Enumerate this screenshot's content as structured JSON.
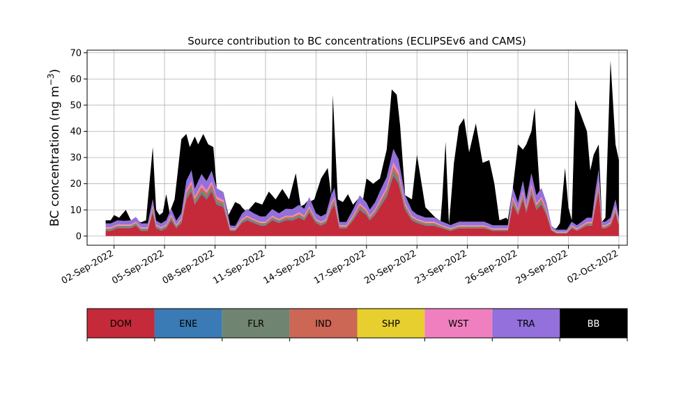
{
  "chart_data": {
    "type": "area",
    "stacked": true,
    "title": "Source contribution to BC concentrations (ECLIPSEv6 and CAMS)",
    "ylabel_main": "BC concentration (ng m",
    "ylabel_sup": "−3",
    "ylabel_close": ")",
    "xlabel": "",
    "ylim": [
      -3.5,
      71
    ],
    "yticks": [
      0,
      10,
      20,
      30,
      40,
      50,
      60,
      70
    ],
    "xlim": [
      0.4,
      32.5
    ],
    "grid": true,
    "xtick_positions": [
      2,
      5,
      8,
      11,
      14,
      17,
      20,
      23,
      26,
      29,
      32
    ],
    "xtick_labels": [
      "02-Sep-2022",
      "05-Sep-2022",
      "08-Sep-2022",
      "11-Sep-2022",
      "14-Sep-2022",
      "17-Sep-2022",
      "20-Sep-2022",
      "23-Sep-2022",
      "26-Sep-2022",
      "29-Sep-2022",
      "02-Oct-2022"
    ],
    "x_unit": "day of September 2022",
    "total_x": [
      1.5,
      1.8,
      2.0,
      2.3,
      2.7,
      3.0,
      3.5,
      3.9,
      4.3,
      4.5,
      4.7,
      4.9,
      5.1,
      5.3,
      5.6,
      6.0,
      6.3,
      6.5,
      6.8,
      7.0,
      7.3,
      7.6,
      7.9,
      8.1,
      8.4,
      8.8,
      9.2,
      9.5,
      9.8,
      10.0,
      10.4,
      10.8,
      11.2,
      11.6,
      12.0,
      12.4,
      12.8,
      13.1,
      13.5,
      13.7,
      13.9,
      14.3,
      14.7,
      14.9,
      15.0,
      15.3,
      15.6,
      15.9,
      16.2,
      16.5,
      16.8,
      17.0,
      17.4,
      17.8,
      18.2,
      18.5,
      18.8,
      19.0,
      19.3,
      19.7,
      20.0,
      20.5,
      21.1,
      21.4,
      21.7,
      21.9,
      22.2,
      22.5,
      22.8,
      23.1,
      23.5,
      23.9,
      24.3,
      24.6,
      24.9,
      25.3,
      25.7,
      26.0,
      26.3,
      26.5,
      26.8,
      27.0,
      27.3,
      27.6,
      27.9,
      28.2,
      28.5,
      28.8,
      29.0,
      29.2,
      29.4,
      29.7,
      30.1,
      30.3,
      30.5,
      30.8,
      31.0,
      31.2,
      31.5,
      31.8,
      32.0
    ],
    "total_values": [
      6,
      6,
      8,
      7,
      10,
      6,
      5,
      6,
      34,
      10,
      8,
      9,
      16,
      9,
      14,
      37,
      39,
      34,
      38,
      35,
      39,
      35,
      34,
      4,
      3,
      8,
      13,
      12,
      9,
      10,
      13,
      12,
      17,
      14,
      18,
      14,
      24,
      11,
      13,
      11,
      14,
      22,
      26,
      15,
      54,
      14,
      13,
      16,
      12,
      13,
      13,
      22,
      20,
      22,
      33,
      56,
      54,
      42,
      10,
      14,
      31,
      11,
      7,
      3,
      36,
      4,
      28,
      42,
      45,
      32,
      43,
      28,
      29,
      20,
      6,
      7,
      4,
      35,
      33,
      35,
      40,
      49,
      14,
      7,
      3,
      2,
      5,
      26,
      11,
      6,
      52,
      47,
      40,
      25,
      31,
      35,
      4,
      7,
      67,
      35,
      29
    ],
    "components_total_ratio_note": "",
    "component_x": [
      1.5,
      1.8,
      2.2,
      2.6,
      3.0,
      3.3,
      3.6,
      4.0,
      4.3,
      4.5,
      4.8,
      5.1,
      5.4,
      5.7,
      6.0,
      6.3,
      6.6,
      6.8,
      7.2,
      7.5,
      7.8,
      8.1,
      8.5,
      8.9,
      9.2,
      9.6,
      9.9,
      10.3,
      10.7,
      11.0,
      11.4,
      11.8,
      12.2,
      12.6,
      13.0,
      13.3,
      13.6,
      14.0,
      14.3,
      14.6,
      14.9,
      15.1,
      15.4,
      15.8,
      16.2,
      16.6,
      17.0,
      17.2,
      17.5,
      17.8,
      18.2,
      18.6,
      18.9,
      19.3,
      19.7,
      20.0,
      20.5,
      21.0,
      21.5,
      22.0,
      22.5,
      23.0,
      23.5,
      24.0,
      24.5,
      25.0,
      25.4,
      25.7,
      26.0,
      26.3,
      26.5,
      26.8,
      27.1,
      27.4,
      27.7,
      28.0,
      28.3,
      28.6,
      28.9,
      29.2,
      29.5,
      29.8,
      30.1,
      30.4,
      30.6,
      30.8,
      31.0,
      31.2,
      31.5,
      31.8,
      32.0
    ],
    "series": [
      {
        "name": "DOM",
        "color": "#c52a3a",
        "values": [
          2,
          2,
          3,
          3,
          3,
          4,
          2,
          2,
          9,
          3,
          2,
          3,
          6,
          3,
          5,
          14,
          17,
          12,
          16,
          14,
          17,
          12,
          11,
          2,
          2,
          5,
          6,
          5,
          4,
          4,
          6,
          5,
          6,
          6,
          7,
          6,
          9,
          5,
          4,
          5,
          10,
          12,
          3,
          3,
          6,
          10,
          8,
          6,
          8,
          11,
          15,
          23,
          20,
          10,
          6,
          5,
          4,
          4,
          3,
          2,
          3,
          3,
          3,
          3,
          2,
          2,
          2,
          12,
          8,
          14,
          9,
          16,
          10,
          12,
          8,
          2,
          1,
          1,
          1,
          3,
          2,
          3,
          4,
          4,
          11,
          17,
          3,
          3,
          4,
          9,
          4
        ]
      },
      {
        "name": "ENE",
        "color": "#3a7ab5",
        "values": [
          0.2,
          0.2,
          0.2,
          0.2,
          0.2,
          0.2,
          0.2,
          0.2,
          0.3,
          0.2,
          0.2,
          0.2,
          0.3,
          0.2,
          0.2,
          0.4,
          0.4,
          0.3,
          0.4,
          0.4,
          0.4,
          0.3,
          0.3,
          0.1,
          0.1,
          0.2,
          0.2,
          0.2,
          0.2,
          0.2,
          0.2,
          0.2,
          0.2,
          0.2,
          0.2,
          0.2,
          0.3,
          0.2,
          0.2,
          0.2,
          0.3,
          0.3,
          0.1,
          0.1,
          0.2,
          0.3,
          0.2,
          0.2,
          0.2,
          0.3,
          0.4,
          0.5,
          0.5,
          0.3,
          0.2,
          0.2,
          0.2,
          0.2,
          0.1,
          0.1,
          0.1,
          0.1,
          0.1,
          0.1,
          0.1,
          0.1,
          0.1,
          0.3,
          0.2,
          0.3,
          0.2,
          0.4,
          0.3,
          0.3,
          0.2,
          0.1,
          0.1,
          0.1,
          0.1,
          0.1,
          0.1,
          0.1,
          0.1,
          0.1,
          0.3,
          0.4,
          0.1,
          0.1,
          0.1,
          0.2,
          0.1
        ]
      },
      {
        "name": "FLR",
        "color": "#6f8471",
        "values": [
          0.5,
          0.5,
          0.5,
          0.5,
          0.5,
          0.5,
          0.5,
          0.5,
          0.8,
          0.5,
          0.5,
          0.5,
          0.7,
          0.5,
          0.6,
          1.0,
          1.2,
          0.9,
          1.1,
          1.0,
          1.1,
          0.9,
          0.8,
          0.3,
          0.3,
          0.5,
          0.6,
          0.5,
          0.5,
          0.5,
          0.6,
          0.5,
          0.6,
          0.6,
          0.7,
          0.6,
          0.8,
          0.5,
          0.5,
          0.5,
          0.8,
          0.9,
          0.4,
          0.4,
          0.6,
          0.8,
          0.7,
          0.6,
          0.7,
          0.9,
          1.1,
          1.4,
          1.3,
          0.8,
          0.6,
          0.5,
          0.5,
          0.5,
          0.4,
          0.4,
          0.4,
          0.4,
          0.4,
          0.4,
          0.3,
          0.3,
          0.3,
          0.9,
          0.7,
          1.0,
          0.7,
          1.1,
          0.8,
          0.9,
          0.7,
          0.3,
          0.2,
          0.2,
          0.2,
          0.4,
          0.3,
          0.4,
          0.5,
          0.5,
          0.9,
          1.1,
          0.4,
          0.4,
          0.5,
          0.7,
          0.5
        ]
      },
      {
        "name": "IND",
        "color": "#cc6655",
        "values": [
          0.3,
          0.3,
          0.3,
          0.3,
          0.3,
          0.4,
          0.3,
          0.3,
          0.8,
          0.3,
          0.3,
          0.3,
          0.6,
          0.3,
          0.5,
          1.2,
          1.4,
          1.0,
          1.3,
          1.1,
          1.3,
          1.0,
          0.9,
          0.2,
          0.2,
          0.4,
          0.5,
          0.4,
          0.4,
          0.4,
          0.5,
          0.4,
          0.5,
          0.5,
          0.6,
          0.5,
          0.7,
          0.4,
          0.4,
          0.4,
          0.8,
          0.9,
          0.3,
          0.3,
          0.5,
          0.8,
          0.7,
          0.5,
          0.7,
          0.9,
          1.2,
          1.8,
          1.6,
          0.8,
          0.5,
          0.4,
          0.4,
          0.4,
          0.3,
          0.2,
          0.3,
          0.3,
          0.3,
          0.3,
          0.2,
          0.2,
          0.2,
          1.0,
          0.7,
          1.1,
          0.7,
          1.3,
          0.8,
          1.0,
          0.7,
          0.2,
          0.1,
          0.1,
          0.1,
          0.3,
          0.2,
          0.3,
          0.4,
          0.4,
          0.9,
          1.3,
          0.3,
          0.3,
          0.4,
          0.7,
          0.4
        ]
      },
      {
        "name": "SHP",
        "color": "#e6cf2e",
        "values": [
          0.1,
          0.1,
          0.1,
          0.1,
          0.1,
          0.1,
          0.1,
          0.1,
          0.1,
          0.1,
          0.1,
          0.1,
          0.1,
          0.1,
          0.1,
          0.1,
          0.1,
          0.1,
          0.1,
          0.1,
          0.1,
          0.1,
          0.1,
          0.1,
          0.1,
          0.1,
          0.1,
          0.1,
          0.1,
          0.1,
          0.1,
          0.1,
          0.1,
          0.1,
          0.1,
          0.1,
          0.1,
          0.1,
          0.1,
          0.1,
          0.1,
          0.1,
          0.1,
          0.1,
          0.1,
          0.1,
          0.1,
          0.1,
          0.1,
          0.1,
          0.1,
          0.2,
          0.2,
          0.1,
          0.1,
          0.1,
          0.1,
          0.1,
          0.1,
          0.1,
          0.1,
          0.1,
          0.1,
          0.1,
          0.1,
          0.1,
          0.1,
          0.1,
          0.1,
          0.1,
          0.1,
          0.1,
          0.1,
          0.1,
          0.1,
          0.1,
          0.1,
          0.1,
          0.1,
          0.1,
          0.1,
          0.1,
          0.1,
          0.1,
          0.1,
          0.1,
          0.1,
          0.1,
          0.1,
          0.1,
          0.1
        ]
      },
      {
        "name": "WST",
        "color": "#f07fbf",
        "values": [
          0.3,
          0.3,
          0.3,
          0.3,
          0.3,
          0.3,
          0.3,
          0.3,
          0.6,
          0.3,
          0.3,
          0.3,
          0.5,
          0.3,
          0.4,
          0.9,
          1.0,
          0.8,
          1.0,
          0.9,
          1.0,
          0.8,
          0.7,
          0.2,
          0.2,
          0.3,
          0.4,
          0.3,
          0.3,
          0.3,
          0.4,
          0.3,
          0.4,
          0.4,
          0.5,
          0.4,
          0.5,
          0.3,
          0.3,
          0.3,
          0.6,
          0.7,
          0.2,
          0.2,
          0.4,
          0.6,
          0.5,
          0.4,
          0.5,
          0.7,
          0.9,
          1.4,
          1.2,
          0.6,
          0.4,
          0.3,
          0.3,
          0.3,
          0.2,
          0.2,
          0.2,
          0.2,
          0.2,
          0.2,
          0.2,
          0.2,
          0.2,
          0.7,
          0.5,
          0.8,
          0.5,
          0.9,
          0.6,
          0.7,
          0.5,
          0.2,
          0.1,
          0.1,
          0.1,
          0.2,
          0.2,
          0.2,
          0.3,
          0.3,
          0.7,
          1.0,
          0.2,
          0.2,
          0.3,
          0.5,
          0.3
        ]
      },
      {
        "name": "TRA",
        "color": "#9370db",
        "values": [
          1.4,
          1.4,
          1.6,
          1.4,
          1.6,
          1.8,
          1.4,
          1.4,
          2.5,
          1.5,
          1.4,
          1.6,
          2.2,
          1.5,
          1.9,
          3.5,
          4.0,
          3.0,
          3.8,
          3.5,
          4.0,
          3.2,
          3.0,
          1.1,
          1.0,
          2.0,
          2.5,
          2.2,
          2.0,
          2.0,
          2.5,
          2.2,
          2.6,
          2.5,
          2.8,
          2.6,
          3.5,
          2.2,
          2.0,
          2.0,
          3.0,
          3.5,
          1.3,
          1.3,
          2.3,
          3.0,
          2.6,
          2.3,
          2.6,
          3.2,
          3.8,
          5.0,
          4.6,
          3.0,
          2.0,
          1.8,
          1.6,
          1.6,
          1.4,
          1.2,
          1.4,
          1.4,
          1.4,
          1.4,
          1.2,
          1.2,
          1.2,
          3.5,
          2.6,
          3.8,
          2.6,
          4.2,
          3.0,
          3.4,
          2.6,
          1.0,
          0.8,
          0.8,
          0.8,
          1.4,
          1.2,
          1.4,
          1.6,
          1.6,
          3.2,
          4.5,
          1.4,
          1.4,
          1.6,
          2.8,
          1.6
        ]
      }
    ],
    "bb_series": {
      "name": "BB",
      "color": "#000000"
    },
    "colorbar_labels": [
      {
        "label": "DOM",
        "color": "#c52a3a",
        "text_color": "#000000"
      },
      {
        "label": "ENE",
        "color": "#3a7ab5",
        "text_color": "#000000"
      },
      {
        "label": "FLR",
        "color": "#6f8471",
        "text_color": "#000000"
      },
      {
        "label": "IND",
        "color": "#cc6655",
        "text_color": "#000000"
      },
      {
        "label": "SHP",
        "color": "#e6cf2e",
        "text_color": "#000000"
      },
      {
        "label": "WST",
        "color": "#f07fbf",
        "text_color": "#000000"
      },
      {
        "label": "TRA",
        "color": "#9370db",
        "text_color": "#000000"
      },
      {
        "label": "BB",
        "color": "#000000",
        "text_color": "#ffffff"
      }
    ]
  }
}
